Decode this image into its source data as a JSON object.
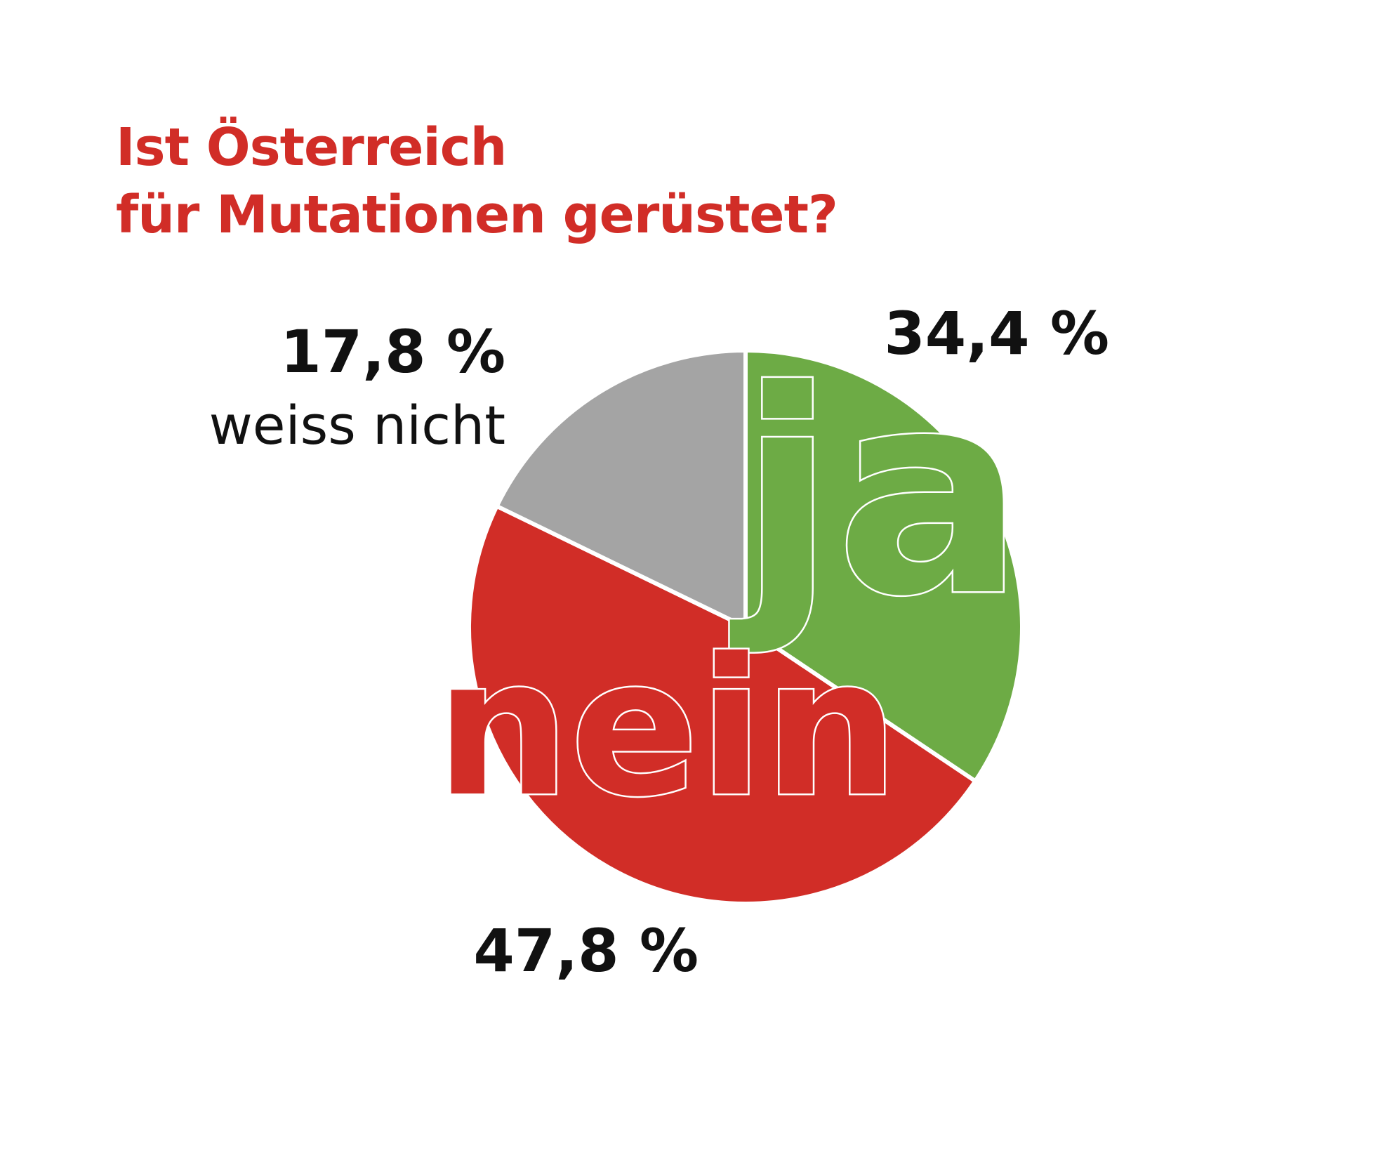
{
  "chart_data": {
    "type": "pie",
    "title": [
      "Ist Österreich",
      "für Mutationen gerüstet?"
    ],
    "start_angle_deg": 0,
    "direction": "clockwise",
    "slices": [
      {
        "label": "ja",
        "value": 34.4,
        "value_label": "34,4 %",
        "color": "#6dab45"
      },
      {
        "label": "nein",
        "value": 47.8,
        "value_label": "47,8 %",
        "color": "#d12d27"
      },
      {
        "label": "weiss nicht",
        "value": 17.8,
        "value_label": "17,8 %",
        "color": "#a4a4a4"
      }
    ]
  },
  "colors": {
    "title": "#d12d27",
    "text": "#111111",
    "separator": "#ffffff",
    "word_fill_ja": "#6dab45",
    "word_fill_nein": "#d12d27"
  }
}
